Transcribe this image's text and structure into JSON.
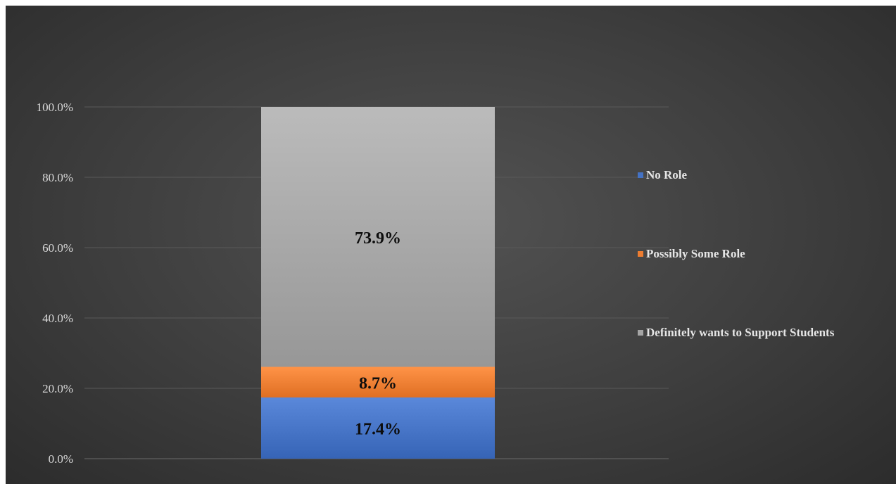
{
  "chart_data": {
    "type": "bar",
    "stacked": true,
    "percent": true,
    "categories": [
      ""
    ],
    "series": [
      {
        "name": "No Role",
        "values": [
          17.4
        ],
        "color": "#4472c4",
        "label": "17.4%"
      },
      {
        "name": "Possibly Some Role",
        "values": [
          8.7
        ],
        "color": "#ed7d31",
        "label": "8.7%"
      },
      {
        "name": "Definitely wants to Support Students",
        "values": [
          73.9
        ],
        "color": "#a5a5a5",
        "label": "73.9%"
      }
    ],
    "ylim": [
      0,
      100
    ],
    "yticks": [
      "0.0%",
      "20.0%",
      "40.0%",
      "60.0%",
      "80.0%",
      "100.0%"
    ],
    "title": "",
    "xlabel": "",
    "ylabel": "",
    "grid": true,
    "legend_position": "right",
    "background": "#3f3f3f",
    "text_color": "#d9d9d9"
  }
}
